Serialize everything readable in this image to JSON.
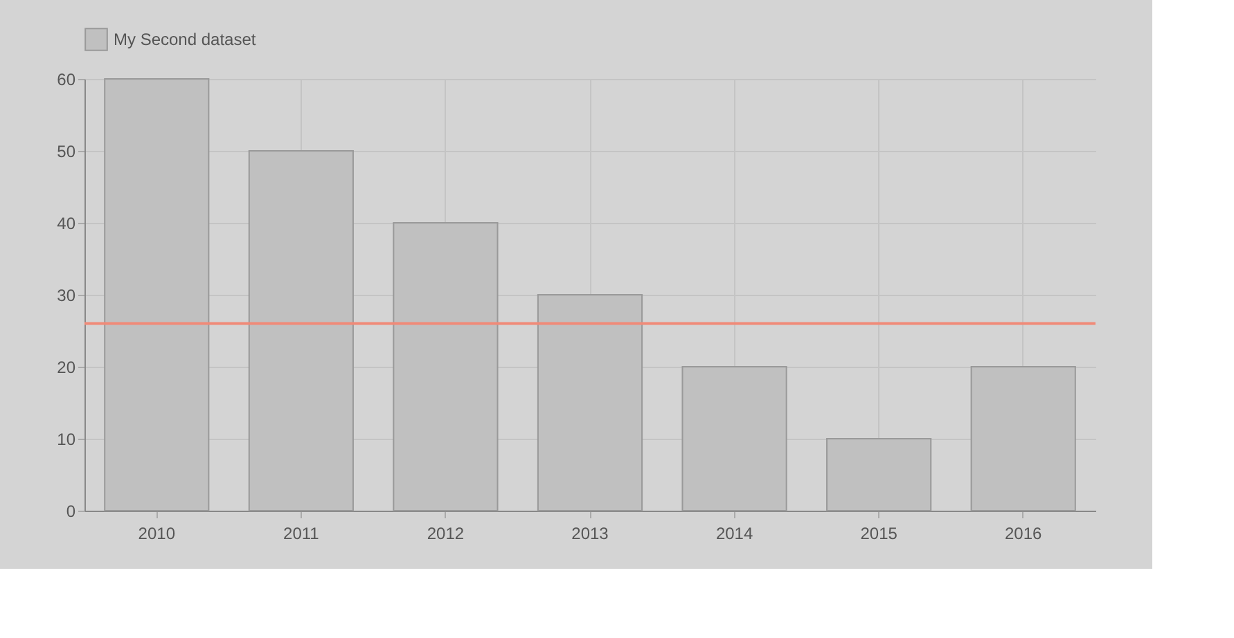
{
  "chart_data": {
    "type": "bar",
    "categories": [
      "2010",
      "2011",
      "2012",
      "2013",
      "2014",
      "2015",
      "2016"
    ],
    "series": [
      {
        "name": "My Second dataset",
        "color": "#c0c0c0",
        "values": [
          60,
          50,
          40,
          30,
          20,
          10,
          20
        ]
      }
    ],
    "ylim": [
      0,
      60
    ],
    "yticks": [
      0,
      10,
      20,
      30,
      40,
      50,
      60
    ],
    "ref_lines": [
      {
        "axis": "y",
        "value": 26,
        "color": "#f08a78"
      }
    ],
    "grid": true,
    "legend": "top"
  }
}
